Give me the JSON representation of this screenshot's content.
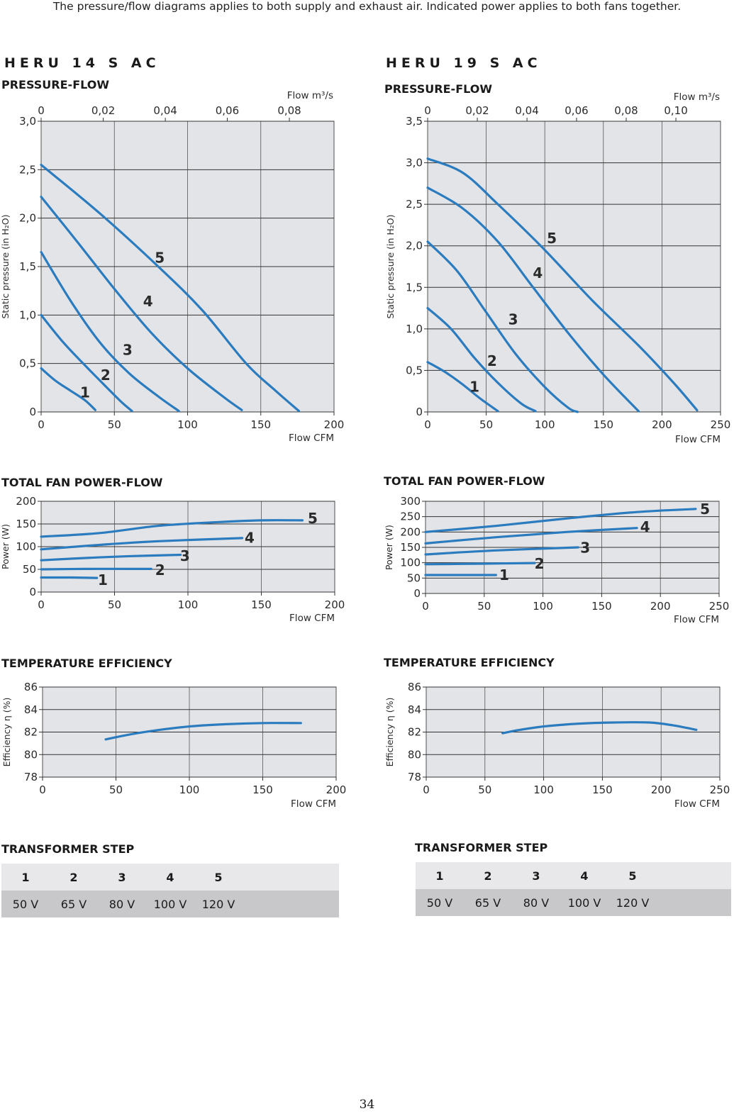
{
  "note": "The pressure/flow diagrams applies to both supply and exhaust air. Indicated power applies to both fans together.",
  "page_number": "34",
  "models": [
    {
      "id": "heru14",
      "name": "HERU 14 S AC",
      "sections": {
        "pressure": "PRESSURE-FLOW",
        "power": "TOTAL FAN POWER-FLOW",
        "efficiency": "TEMPERATURE EFFICIENCY",
        "transformer": "TRANSFORMER STEP"
      },
      "transformer": {
        "steps": [
          "1",
          "2",
          "3",
          "4",
          "5"
        ],
        "voltages": [
          "50 V",
          "65 V",
          "80 V",
          "100 V",
          "120 V"
        ]
      }
    },
    {
      "id": "heru19",
      "name": "HERU 19 S AC",
      "sections": {
        "pressure": "PRESSURE-FLOW",
        "power": "TOTAL FAN POWER-FLOW",
        "efficiency": "TEMPERATURE EFFICIENCY",
        "transformer": "TRANSFORMER STEP"
      },
      "transformer": {
        "steps": [
          "1",
          "2",
          "3",
          "4",
          "5"
        ],
        "voltages": [
          "50 V",
          "65 V",
          "80 V",
          "100 V",
          "120 V"
        ]
      }
    }
  ],
  "chart_data": [
    {
      "id": "p14",
      "type": "line",
      "model": "HERU 14 S AC",
      "title": "PRESSURE-FLOW",
      "xlabel": "Flow CFM",
      "ylabel": "Static pressure (in H₂O)",
      "x2label": "Flow m³/s",
      "xlim": [
        0,
        200
      ],
      "ylim": [
        0,
        3
      ],
      "xticks": [
        {
          "v": 0,
          "l": "0"
        },
        {
          "v": 50,
          "l": "50"
        },
        {
          "v": 100,
          "l": "100"
        },
        {
          "v": 150,
          "l": "150"
        },
        {
          "v": 200,
          "l": "200"
        }
      ],
      "yticks": [
        {
          "v": 0,
          "l": "0"
        },
        {
          "v": 0.5,
          "l": "0,5"
        },
        {
          "v": 1,
          "l": "1,0"
        },
        {
          "v": 1.5,
          "l": "1,5"
        },
        {
          "v": 2,
          "l": "2,0"
        },
        {
          "v": 2.5,
          "l": "2,5"
        },
        {
          "v": 3,
          "l": "3,0"
        }
      ],
      "x2ticks": [
        {
          "v": 0,
          "l": "0"
        },
        {
          "v": 42.4,
          "l": "0,02"
        },
        {
          "v": 84.8,
          "l": "0,04"
        },
        {
          "v": 127.1,
          "l": "0,06"
        },
        {
          "v": 169.5,
          "l": "0,08"
        }
      ],
      "colors": {
        "line": "#2b7bbf",
        "grid": "#222222",
        "bg": "#e3e4e7"
      },
      "series": [
        {
          "name": "1",
          "points": [
            [
              0,
              0.45
            ],
            [
              10,
              0.32
            ],
            [
              20,
              0.22
            ],
            [
              30,
              0.12
            ],
            [
              37,
              0.02
            ]
          ],
          "label": [
            30,
            0.19
          ]
        },
        {
          "name": "2",
          "points": [
            [
              0,
              1.0
            ],
            [
              15,
              0.72
            ],
            [
              30,
              0.48
            ],
            [
              45,
              0.25
            ],
            [
              55,
              0.1
            ],
            [
              62,
              0.01
            ]
          ],
          "label": [
            44,
            0.37
          ]
        },
        {
          "name": "3",
          "points": [
            [
              0,
              1.65
            ],
            [
              20,
              1.15
            ],
            [
              40,
              0.72
            ],
            [
              60,
              0.4
            ],
            [
              80,
              0.16
            ],
            [
              94,
              0.01
            ]
          ],
          "label": [
            59,
            0.63
          ]
        },
        {
          "name": "4",
          "points": [
            [
              0,
              2.22
            ],
            [
              25,
              1.75
            ],
            [
              50,
              1.27
            ],
            [
              75,
              0.82
            ],
            [
              100,
              0.45
            ],
            [
              125,
              0.15
            ],
            [
              137,
              0.02
            ]
          ],
          "label": [
            73,
            1.13
          ]
        },
        {
          "name": "5",
          "points": [
            [
              0,
              2.55
            ],
            [
              40,
              2.05
            ],
            [
              80,
              1.5
            ],
            [
              110,
              1.05
            ],
            [
              140,
              0.5
            ],
            [
              160,
              0.22
            ],
            [
              176,
              0.01
            ]
          ],
          "label": [
            81,
            1.58
          ]
        }
      ]
    },
    {
      "id": "p19",
      "type": "line",
      "model": "HERU 19 S AC",
      "title": "PRESSURE-FLOW",
      "xlabel": "Flow CFM",
      "ylabel": "Static pressure (in H₂O)",
      "x2label": "Flow m³/s",
      "xlim": [
        0,
        250
      ],
      "ylim": [
        0,
        3.5
      ],
      "xticks": [
        {
          "v": 0,
          "l": "0"
        },
        {
          "v": 50,
          "l": "50"
        },
        {
          "v": 100,
          "l": "100"
        },
        {
          "v": 150,
          "l": "150"
        },
        {
          "v": 200,
          "l": "200"
        },
        {
          "v": 250,
          "l": "250"
        }
      ],
      "yticks": [
        {
          "v": 0,
          "l": "0"
        },
        {
          "v": 0.5,
          "l": "0,5"
        },
        {
          "v": 1,
          "l": "1,0"
        },
        {
          "v": 1.5,
          "l": "1,5"
        },
        {
          "v": 2,
          "l": "2,0"
        },
        {
          "v": 2.5,
          "l": "2,5"
        },
        {
          "v": 3,
          "l": "3,0"
        },
        {
          "v": 3.5,
          "l": "3,5"
        }
      ],
      "x2ticks": [
        {
          "v": 0,
          "l": "0"
        },
        {
          "v": 42.4,
          "l": "0,02"
        },
        {
          "v": 84.8,
          "l": "0,04"
        },
        {
          "v": 127.1,
          "l": "0,06"
        },
        {
          "v": 169.5,
          "l": "0,08"
        },
        {
          "v": 211.9,
          "l": "0,10"
        }
      ],
      "colors": {
        "line": "#2b7bbf",
        "grid": "#222222",
        "bg": "#e3e4e7"
      },
      "series": [
        {
          "name": "1",
          "points": [
            [
              0,
              0.6
            ],
            [
              15,
              0.48
            ],
            [
              30,
              0.33
            ],
            [
              45,
              0.16
            ],
            [
              60,
              0.01
            ]
          ],
          "label": [
            40,
            0.29
          ]
        },
        {
          "name": "2",
          "points": [
            [
              0,
              1.25
            ],
            [
              20,
              1.0
            ],
            [
              40,
              0.65
            ],
            [
              60,
              0.35
            ],
            [
              80,
              0.1
            ],
            [
              92,
              0.01
            ]
          ],
          "label": [
            55,
            0.6
          ]
        },
        {
          "name": "3",
          "points": [
            [
              0,
              2.05
            ],
            [
              25,
              1.7
            ],
            [
              50,
              1.2
            ],
            [
              75,
              0.7
            ],
            [
              100,
              0.3
            ],
            [
              120,
              0.05
            ],
            [
              128,
              0.0
            ]
          ],
          "label": [
            73,
            1.1
          ]
        },
        {
          "name": "4",
          "points": [
            [
              0,
              2.7
            ],
            [
              30,
              2.45
            ],
            [
              60,
              2.05
            ],
            [
              90,
              1.5
            ],
            [
              120,
              0.95
            ],
            [
              150,
              0.45
            ],
            [
              180,
              0.01
            ]
          ],
          "label": [
            94,
            1.66
          ]
        },
        {
          "name": "5",
          "points": [
            [
              0,
              3.05
            ],
            [
              30,
              2.88
            ],
            [
              60,
              2.5
            ],
            [
              100,
              1.95
            ],
            [
              140,
              1.35
            ],
            [
              180,
              0.8
            ],
            [
              210,
              0.35
            ],
            [
              230,
              0.02
            ]
          ],
          "label": [
            106,
            2.08
          ]
        }
      ]
    },
    {
      "id": "w14",
      "type": "line",
      "model": "HERU 14 S AC",
      "title": "TOTAL FAN POWER-FLOW",
      "xlabel": "Flow CFM",
      "ylabel": "Power (W)",
      "xlim": [
        0,
        200
      ],
      "ylim": [
        0,
        200
      ],
      "xticks": [
        {
          "v": 0,
          "l": "0"
        },
        {
          "v": 50,
          "l": "50"
        },
        {
          "v": 100,
          "l": "100"
        },
        {
          "v": 150,
          "l": "150"
        },
        {
          "v": 200,
          "l": "200"
        }
      ],
      "yticks": [
        {
          "v": 0,
          "l": "0"
        },
        {
          "v": 50,
          "l": "50"
        },
        {
          "v": 100,
          "l": "100"
        },
        {
          "v": 150,
          "l": "150"
        },
        {
          "v": 200,
          "l": "200"
        }
      ],
      "colors": {
        "line": "#2b7bbf",
        "grid": "#222222",
        "bg": "#e3e4e7"
      },
      "series": [
        {
          "name": "1",
          "points": [
            [
              0,
              32
            ],
            [
              20,
              32
            ],
            [
              38,
              31
            ]
          ],
          "label": [
            42,
            24
          ]
        },
        {
          "name": "2",
          "points": [
            [
              0,
              50
            ],
            [
              30,
              51
            ],
            [
              60,
              51
            ],
            [
              75,
              51
            ]
          ],
          "label": [
            81,
            46
          ]
        },
        {
          "name": "3",
          "points": [
            [
              0,
              70
            ],
            [
              30,
              75
            ],
            [
              60,
              79
            ],
            [
              95,
              82
            ]
          ],
          "label": [
            98,
            77
          ]
        },
        {
          "name": "4",
          "points": [
            [
              0,
              94
            ],
            [
              40,
              104
            ],
            [
              80,
              112
            ],
            [
              137,
              119
            ]
          ],
          "label": [
            142,
            117
          ]
        },
        {
          "name": "5",
          "points": [
            [
              0,
              122
            ],
            [
              40,
              130
            ],
            [
              80,
              146
            ],
            [
              120,
              154
            ],
            [
              150,
              158
            ],
            [
              178,
              158
            ]
          ],
          "label": [
            185,
            160
          ]
        }
      ]
    },
    {
      "id": "w19",
      "type": "line",
      "model": "HERU 19 S AC",
      "title": "TOTAL FAN POWER-FLOW",
      "xlabel": "Flow CFM",
      "ylabel": "Power (W)",
      "xlim": [
        0,
        250
      ],
      "ylim": [
        0,
        300
      ],
      "xticks": [
        {
          "v": 0,
          "l": "0"
        },
        {
          "v": 50,
          "l": "50"
        },
        {
          "v": 100,
          "l": "100"
        },
        {
          "v": 150,
          "l": "150"
        },
        {
          "v": 200,
          "l": "200"
        },
        {
          "v": 250,
          "l": "250"
        }
      ],
      "yticks": [
        {
          "v": 0,
          "l": "0"
        },
        {
          "v": 50,
          "l": "50"
        },
        {
          "v": 100,
          "l": "100"
        },
        {
          "v": 150,
          "l": "150"
        },
        {
          "v": 200,
          "l": "200"
        },
        {
          "v": 250,
          "l": "250"
        },
        {
          "v": 300,
          "l": "300"
        }
      ],
      "colors": {
        "line": "#2b7bbf",
        "grid": "#222222",
        "bg": "#e3e4e7"
      },
      "series": [
        {
          "name": "1",
          "points": [
            [
              0,
              60
            ],
            [
              30,
              60
            ],
            [
              60,
              60
            ]
          ],
          "label": [
            67,
            57
          ]
        },
        {
          "name": "2",
          "points": [
            [
              0,
              95
            ],
            [
              50,
              97
            ],
            [
              93,
              99
            ]
          ],
          "label": [
            97,
            93
          ]
        },
        {
          "name": "3",
          "points": [
            [
              0,
              127
            ],
            [
              60,
              140
            ],
            [
              130,
              150
            ]
          ],
          "label": [
            136,
            145
          ]
        },
        {
          "name": "4",
          "points": [
            [
              0,
              163
            ],
            [
              60,
              183
            ],
            [
              120,
              200
            ],
            [
              180,
              213
            ]
          ],
          "label": [
            187,
            213
          ]
        },
        {
          "name": "5",
          "points": [
            [
              0,
              200
            ],
            [
              60,
              220
            ],
            [
              120,
              244
            ],
            [
              180,
              265
            ],
            [
              230,
              275
            ]
          ],
          "label": [
            238,
            271
          ]
        }
      ]
    },
    {
      "id": "e14",
      "type": "line",
      "model": "HERU 14 S AC",
      "title": "TEMPERATURE EFFICIENCY",
      "xlabel": "Flow CFM",
      "ylabel": "Efficiency η (%)",
      "xlim": [
        0,
        200
      ],
      "ylim": [
        78,
        86
      ],
      "xticks": [
        {
          "v": 0,
          "l": "0"
        },
        {
          "v": 50,
          "l": "50"
        },
        {
          "v": 100,
          "l": "100"
        },
        {
          "v": 150,
          "l": "150"
        },
        {
          "v": 200,
          "l": "200"
        }
      ],
      "yticks": [
        {
          "v": 78,
          "l": "78"
        },
        {
          "v": 80,
          "l": "80"
        },
        {
          "v": 82,
          "l": "82"
        },
        {
          "v": 84,
          "l": "84"
        },
        {
          "v": 86,
          "l": "86"
        }
      ],
      "colors": {
        "line": "#2b7bbf",
        "grid": "#222222",
        "bg": "#e3e4e7"
      },
      "series": [
        {
          "name": "",
          "points": [
            [
              43,
              81.35
            ],
            [
              60,
              81.8
            ],
            [
              80,
              82.2
            ],
            [
              100,
              82.5
            ],
            [
              125,
              82.7
            ],
            [
              150,
              82.8
            ],
            [
              176,
              82.8
            ]
          ]
        }
      ]
    },
    {
      "id": "e19",
      "type": "line",
      "model": "HERU 19 S AC",
      "title": "TEMPERATURE EFFICIENCY",
      "xlabel": "Flow CFM",
      "ylabel": "Efficiency η (%)",
      "xlim": [
        0,
        250
      ],
      "ylim": [
        78,
        86
      ],
      "xticks": [
        {
          "v": 0,
          "l": "0"
        },
        {
          "v": 50,
          "l": "50"
        },
        {
          "v": 100,
          "l": "100"
        },
        {
          "v": 150,
          "l": "150"
        },
        {
          "v": 200,
          "l": "200"
        },
        {
          "v": 250,
          "l": "250"
        }
      ],
      "yticks": [
        {
          "v": 78,
          "l": "78"
        },
        {
          "v": 80,
          "l": "80"
        },
        {
          "v": 82,
          "l": "82"
        },
        {
          "v": 84,
          "l": "84"
        },
        {
          "v": 86,
          "l": "86"
        }
      ],
      "colors": {
        "line": "#2b7bbf",
        "grid": "#222222",
        "bg": "#e3e4e7"
      },
      "series": [
        {
          "name": "",
          "points": [
            [
              65,
              81.9
            ],
            [
              80,
              82.2
            ],
            [
              100,
              82.5
            ],
            [
              130,
              82.75
            ],
            [
              160,
              82.85
            ],
            [
              190,
              82.85
            ],
            [
              210,
              82.6
            ],
            [
              230,
              82.2
            ]
          ]
        }
      ]
    }
  ]
}
